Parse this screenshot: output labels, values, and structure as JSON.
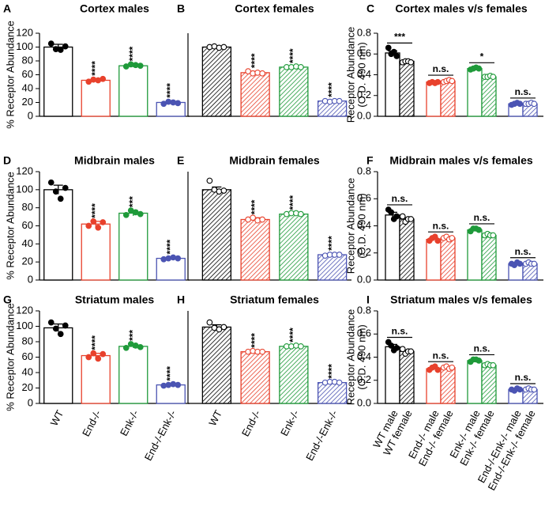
{
  "chart_data": [
    {
      "type": "bar",
      "label": "A",
      "title": "Cortex males",
      "ylabel": "% Receptor Abundance",
      "categories": [
        null,
        null,
        null,
        null
      ],
      "values": [
        100,
        52,
        73,
        20
      ],
      "errors": [
        4,
        2,
        2,
        2
      ],
      "points": [
        [
          105,
          97,
          96,
          101
        ],
        [
          50,
          53,
          52,
          54
        ],
        [
          72,
          75,
          74,
          73
        ],
        [
          18,
          21,
          20,
          19
        ]
      ],
      "significance": [
        null,
        "****",
        "****",
        "****"
      ],
      "colors": [
        "#000000",
        "#e8412c",
        "#1f9a3a",
        "#4b54b3"
      ],
      "hatched": [
        false,
        false,
        false,
        false
      ],
      "ylim": [
        0,
        120
      ],
      "yticks": [
        0,
        20,
        40,
        60,
        80,
        100,
        120
      ]
    },
    {
      "type": "bar",
      "label": "B",
      "title": "Cortex females",
      "categories": [
        null,
        null,
        null,
        null
      ],
      "values": [
        100,
        63,
        71,
        22
      ],
      "errors": [
        1,
        2,
        1,
        1
      ],
      "points": [
        [
          100,
          101,
          99,
          100
        ],
        [
          65,
          62,
          63,
          62
        ],
        [
          71,
          71,
          72,
          71
        ],
        [
          22,
          21,
          22,
          22
        ]
      ],
      "significance": [
        null,
        "****",
        "****",
        "****"
      ],
      "colors": [
        "#000000",
        "#e8412c",
        "#1f9a3a",
        "#4b54b3"
      ],
      "hatched": [
        true,
        true,
        true,
        true
      ],
      "ylim": [
        0,
        120
      ]
    },
    {
      "type": "paired-bar",
      "label": "C",
      "title": "Cortex males v/s females",
      "ylabel": [
        "Receptor Abundance",
        "(O.D. 490 nm)"
      ],
      "categories": [
        null,
        null,
        null,
        null,
        null,
        null,
        null,
        null
      ],
      "values": [
        0.61,
        0.53,
        0.33,
        0.34,
        0.46,
        0.38,
        0.12,
        0.12
      ],
      "errors": [
        0.02,
        0.01,
        0.01,
        0.01,
        0.01,
        0.01,
        0.01,
        0.01
      ],
      "points": [
        [
          0.66,
          0.6,
          0.62,
          0.58
        ],
        [
          0.52,
          0.53,
          0.53,
          0.52
        ],
        [
          0.32,
          0.33,
          0.32,
          0.33
        ],
        [
          0.33,
          0.34,
          0.35,
          0.34
        ],
        [
          0.45,
          0.46,
          0.47,
          0.46
        ],
        [
          0.38,
          0.38,
          0.39,
          0.38
        ],
        [
          0.11,
          0.12,
          0.13,
          0.12
        ],
        [
          0.12,
          0.12,
          0.13,
          0.12
        ]
      ],
      "comparisons": [
        "***",
        "n.s.",
        "*",
        "n.s."
      ],
      "colors": [
        "#000000",
        "#000000",
        "#e8412c",
        "#e8412c",
        "#1f9a3a",
        "#1f9a3a",
        "#4b54b3",
        "#4b54b3"
      ],
      "hatched": [
        false,
        true,
        false,
        true,
        false,
        true,
        false,
        true
      ],
      "ylim": [
        0,
        0.8
      ],
      "yticks": [
        {
          "value": 0,
          "label": "0.0"
        },
        0.2,
        0.4,
        0.6,
        0.8
      ]
    },
    {
      "type": "bar",
      "label": "D",
      "title": "Midbrain males",
      "ylabel": "% Receptor Abundance",
      "categories": [
        null,
        null,
        null,
        null
      ],
      "values": [
        100,
        62,
        74,
        24
      ],
      "errors": [
        5,
        3,
        3,
        1
      ],
      "points": [
        [
          108,
          98,
          90,
          102
        ],
        [
          60,
          65,
          58,
          64
        ],
        [
          72,
          77,
          75,
          73
        ],
        [
          23,
          24,
          25,
          24
        ]
      ],
      "significance": [
        null,
        "****",
        "***",
        "****"
      ],
      "colors": [
        "#000000",
        "#e8412c",
        "#1f9a3a",
        "#4b54b3"
      ],
      "hatched": [
        false,
        false,
        false,
        false
      ],
      "ylim": [
        0,
        120
      ],
      "yticks": [
        0,
        20,
        40,
        60,
        80,
        100,
        120
      ]
    },
    {
      "type": "bar",
      "label": "E",
      "title": "Midbrain females",
      "categories": [
        null,
        null,
        null,
        null
      ],
      "values": [
        100,
        67,
        73,
        28
      ],
      "errors": [
        3,
        2,
        1,
        1
      ],
      "points": [
        [
          110,
          100,
          98,
          99
        ],
        [
          67,
          69,
          66,
          67
        ],
        [
          73,
          74,
          74,
          73
        ],
        [
          27,
          28,
          28,
          28
        ]
      ],
      "significance": [
        null,
        "****",
        "****",
        "****"
      ],
      "colors": [
        "#000000",
        "#e8412c",
        "#1f9a3a",
        "#4b54b3"
      ],
      "hatched": [
        true,
        true,
        true,
        true
      ],
      "ylim": [
        0,
        120
      ]
    },
    {
      "type": "paired-bar",
      "label": "F",
      "title": "Midbrain males v/s females",
      "ylabel": [
        "Receptor Abundance",
        "(O.D. 490 nm)"
      ],
      "categories": [
        null,
        null,
        null,
        null,
        null,
        null,
        null,
        null
      ],
      "values": [
        0.48,
        0.45,
        0.3,
        0.31,
        0.37,
        0.33,
        0.12,
        0.12
      ],
      "errors": [
        0.02,
        0.01,
        0.01,
        0.01,
        0.01,
        0.01,
        0.01,
        0.01
      ],
      "points": [
        [
          0.52,
          0.5,
          0.45,
          0.47
        ],
        [
          0.47,
          0.43,
          0.45,
          0.45
        ],
        [
          0.29,
          0.31,
          0.32,
          0.29
        ],
        [
          0.31,
          0.32,
          0.3,
          0.31
        ],
        [
          0.36,
          0.38,
          0.38,
          0.37
        ],
        [
          0.33,
          0.34,
          0.33,
          0.33
        ],
        [
          0.12,
          0.11,
          0.13,
          0.12
        ],
        [
          0.12,
          0.13,
          0.12,
          0.12
        ]
      ],
      "comparisons": [
        "n.s.",
        "n.s.",
        "n.s.",
        "n.s."
      ],
      "colors": [
        "#000000",
        "#000000",
        "#e8412c",
        "#e8412c",
        "#1f9a3a",
        "#1f9a3a",
        "#4b54b3",
        "#4b54b3"
      ],
      "hatched": [
        false,
        true,
        false,
        true,
        false,
        true,
        false,
        true
      ],
      "ylim": [
        0,
        0.8
      ],
      "yticks": [
        {
          "value": 0,
          "label": "0.0"
        },
        0.2,
        0.4,
        0.6,
        0.8
      ]
    },
    {
      "type": "bar",
      "label": "G",
      "title": "Striatum males",
      "ylabel": "% Receptor Abundance",
      "categories": [
        "WT",
        "End-/-",
        "Enk-/-",
        "End-/-Enk-/-"
      ],
      "values": [
        98,
        62,
        74,
        24
      ],
      "errors": [
        5,
        3,
        2,
        1
      ],
      "points": [
        [
          105,
          97,
          90,
          101
        ],
        [
          60,
          65,
          58,
          64
        ],
        [
          72,
          77,
          75,
          73
        ],
        [
          23,
          24,
          25,
          24
        ]
      ],
      "significance": [
        null,
        "****",
        "***",
        "****"
      ],
      "colors": [
        "#000000",
        "#e8412c",
        "#1f9a3a",
        "#4b54b3"
      ],
      "hatched": [
        false,
        false,
        false,
        false
      ],
      "ylim": [
        0,
        120
      ],
      "yticks": [
        0,
        20,
        40,
        60,
        80,
        100,
        120
      ]
    },
    {
      "type": "bar",
      "label": "H",
      "title": "Striatum females",
      "categories": [
        "WT",
        "End-/-",
        "Enk-/-",
        "End-/-Enk-/-"
      ],
      "values": [
        99,
        67,
        74,
        27
      ],
      "errors": [
        3,
        1,
        1,
        1
      ],
      "points": [
        [
          105,
          98,
          96,
          99
        ],
        [
          67,
          68,
          67,
          67
        ],
        [
          74,
          74,
          75,
          74
        ],
        [
          27,
          28,
          28,
          27
        ]
      ],
      "significance": [
        null,
        "****",
        "****",
        "****"
      ],
      "colors": [
        "#000000",
        "#e8412c",
        "#1f9a3a",
        "#4b54b3"
      ],
      "hatched": [
        true,
        true,
        true,
        true
      ],
      "ylim": [
        0,
        120
      ]
    },
    {
      "type": "paired-bar",
      "label": "I",
      "title": "Striatum males v/s females",
      "ylabel": [
        "Receptor Abundance",
        "(O.D. 490 nm)"
      ],
      "categories": [
        "WT male",
        "WT female",
        "End-/- male",
        "End-/- female",
        "Enk-/- male",
        "Enk-/- female",
        "End-/-Enk-/- male",
        "End-/-Enk-/- female"
      ],
      "values": [
        0.49,
        0.45,
        0.3,
        0.31,
        0.37,
        0.33,
        0.12,
        0.12
      ],
      "errors": [
        0.02,
        0.01,
        0.01,
        0.01,
        0.01,
        0.01,
        0.01,
        0.01
      ],
      "points": [
        [
          0.53,
          0.5,
          0.46,
          0.48
        ],
        [
          0.47,
          0.43,
          0.45,
          0.45
        ],
        [
          0.29,
          0.31,
          0.32,
          0.29
        ],
        [
          0.31,
          0.32,
          0.3,
          0.31
        ],
        [
          0.36,
          0.38,
          0.38,
          0.37
        ],
        [
          0.33,
          0.34,
          0.33,
          0.33
        ],
        [
          0.12,
          0.11,
          0.13,
          0.12
        ],
        [
          0.12,
          0.13,
          0.12,
          0.12
        ]
      ],
      "comparisons": [
        "n.s.",
        "n.s.",
        "n.s.",
        "n.s."
      ],
      "colors": [
        "#000000",
        "#000000",
        "#e8412c",
        "#e8412c",
        "#1f9a3a",
        "#1f9a3a",
        "#4b54b3",
        "#4b54b3"
      ],
      "hatched": [
        false,
        true,
        false,
        true,
        false,
        true,
        false,
        true
      ],
      "ylim": [
        0,
        0.8
      ],
      "yticks": [
        {
          "value": 0,
          "label": "0.0"
        },
        0.2,
        0.4,
        0.6,
        0.8
      ]
    }
  ]
}
